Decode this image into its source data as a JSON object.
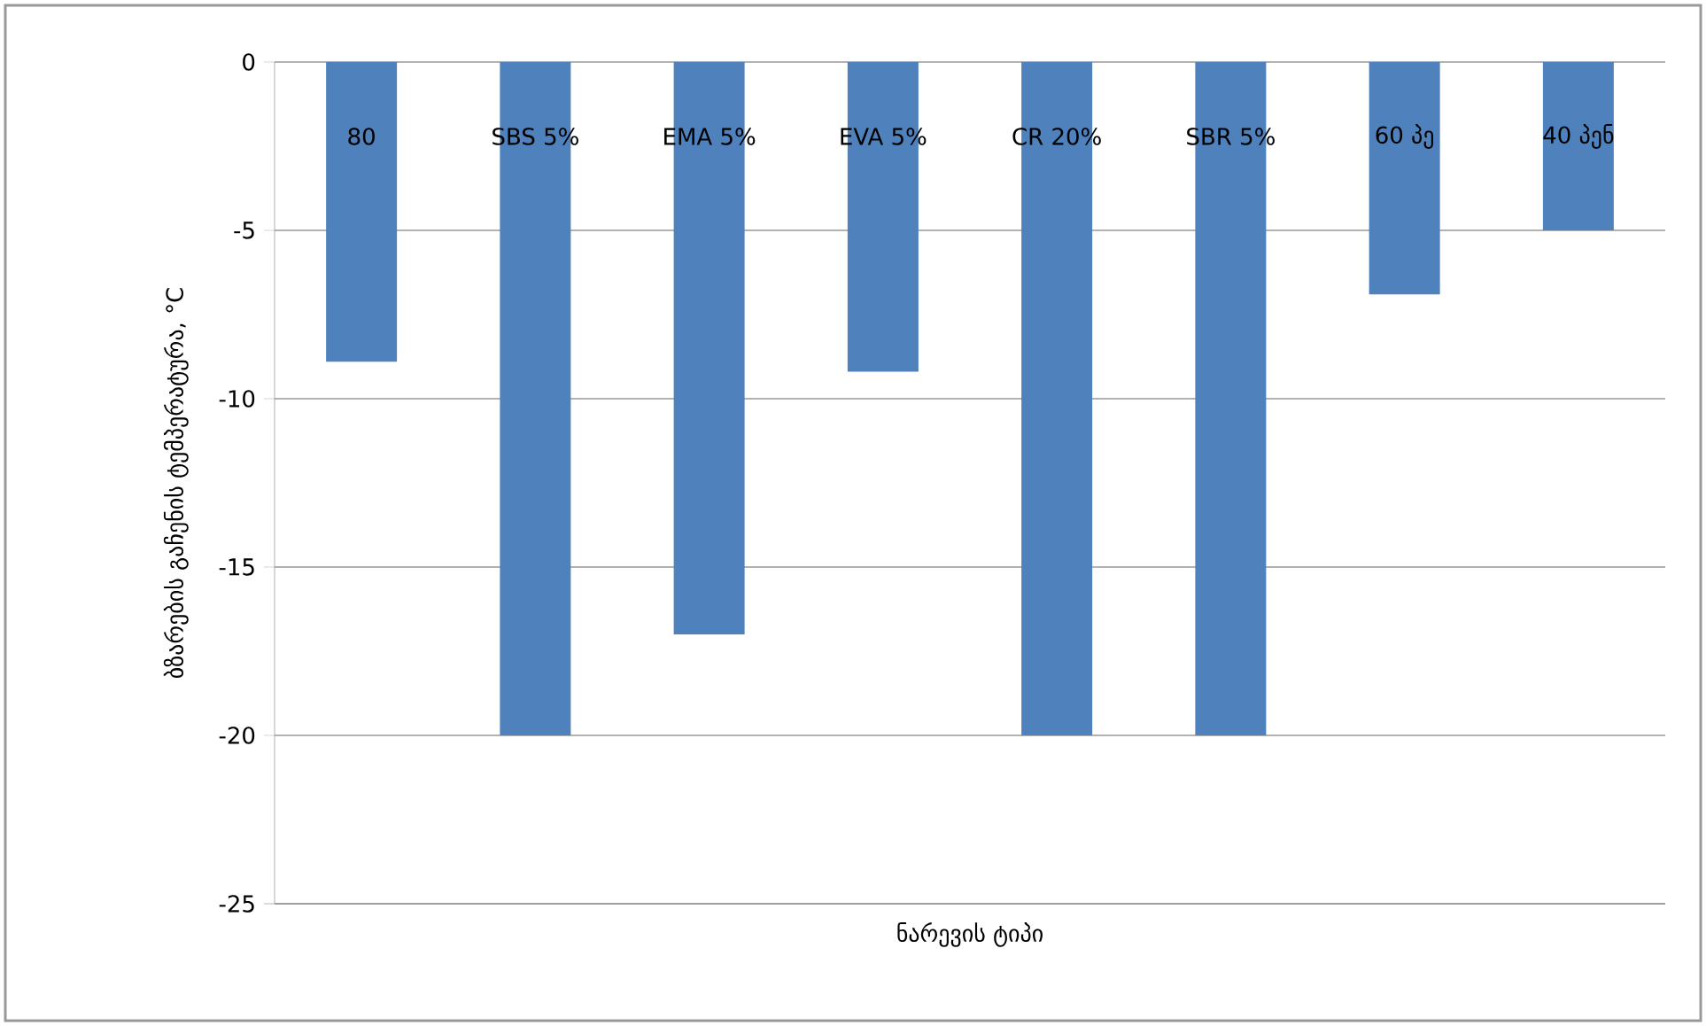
{
  "chart_data": {
    "type": "bar",
    "xlabel": "ნარევის ტიპი",
    "ylabel": "ბზარების გაჩენის ტემპერატურა, °C",
    "categories": [
      "80",
      "SBS 5%",
      "EMA 5%",
      "EVA 5%",
      "CR 20%",
      "SBR 5%",
      "60 პე",
      "40 პენ"
    ],
    "values": [
      -8.9,
      -20,
      -17,
      -9.2,
      -20,
      -20,
      -6.9,
      -5
    ],
    "color": "#4f81bd",
    "ylim": [
      -25,
      0
    ],
    "yticks": [
      -25,
      -20,
      -15,
      -10,
      -5,
      0
    ],
    "grid": "y"
  }
}
